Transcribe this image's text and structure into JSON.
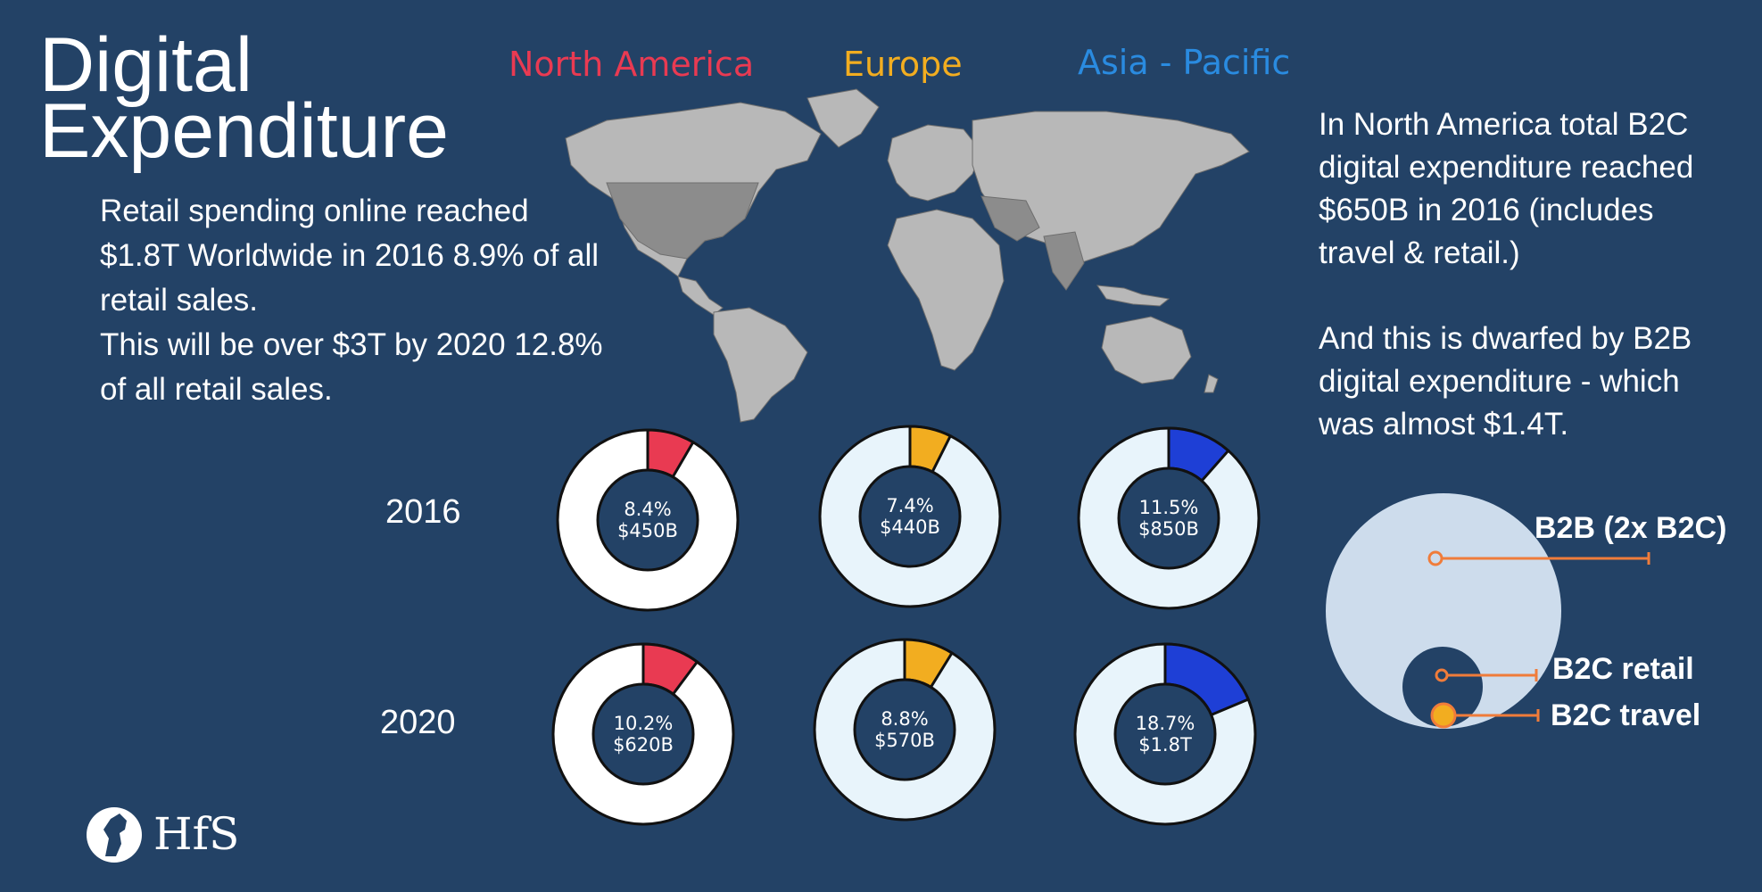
{
  "title": {
    "line1": "Digital",
    "line2": "Expenditure"
  },
  "left_text": {
    "lines": [
      "Retail spending online reached",
      "$1.8T Worldwide in 2016 8.9% of all",
      "retail sales.",
      "This will be over $3T by 2020 12.8%",
      "of all retail sales."
    ]
  },
  "right_text": {
    "para1": [
      "In North America total B2C",
      "digital expenditure reached",
      "$650B in 2016 (includes",
      "travel & retail.)"
    ],
    "para2": [
      "And this is dwarfed by B2B",
      "digital expenditure -  which",
      "was almost $1.4T."
    ]
  },
  "colors": {
    "background": "#234266",
    "north_america": "#e93a52",
    "europe": "#f2ad20",
    "asia_pacific": "#2a8be0",
    "asia_pacific_slice": "#1e3fd6",
    "accent_line": "#f07c3a"
  },
  "chart_data": [
    {
      "type": "pie",
      "variant": "donut",
      "series_names": [
        "North America",
        "Europe",
        "Asia - Pacific"
      ],
      "years": [
        "2016",
        "2020"
      ],
      "cells": [
        {
          "year": "2016",
          "region": "North America",
          "percent": 8.4,
          "value_label": "$450B"
        },
        {
          "year": "2016",
          "region": "Europe",
          "percent": 7.4,
          "value_label": "$440B"
        },
        {
          "year": "2016",
          "region": "Asia - Pacific",
          "percent": 11.5,
          "value_label": "$850B"
        },
        {
          "year": "2020",
          "region": "North America",
          "percent": 10.2,
          "value_label": "$620B"
        },
        {
          "year": "2020",
          "region": "Europe",
          "percent": 8.8,
          "value_label": "$570B"
        },
        {
          "year": "2020",
          "region": "Asia - Pacific",
          "percent": 18.7,
          "value_label": "$1.8T"
        }
      ],
      "labels": {
        "d2016_na": {
          "pct": "8.4%",
          "val": "$450B"
        },
        "d2016_eu": {
          "pct": "7.4%",
          "val": "$440B"
        },
        "d2016_ap": {
          "pct": "11.5%",
          "val": "$850B"
        },
        "d2020_na": {
          "pct": "10.2%",
          "val": "$620B"
        },
        "d2020_eu": {
          "pct": "8.8%",
          "val": "$570B"
        },
        "d2020_ap": {
          "pct": "18.7%",
          "val": "$1.8T"
        }
      }
    },
    {
      "type": "bubble",
      "items": [
        {
          "name": "B2B (2x B2C)"
        },
        {
          "name": "B2C retail"
        },
        {
          "name": "B2C travel"
        }
      ]
    }
  ],
  "logo": {
    "text": "HfS",
    "icon": "horse-head-icon"
  }
}
